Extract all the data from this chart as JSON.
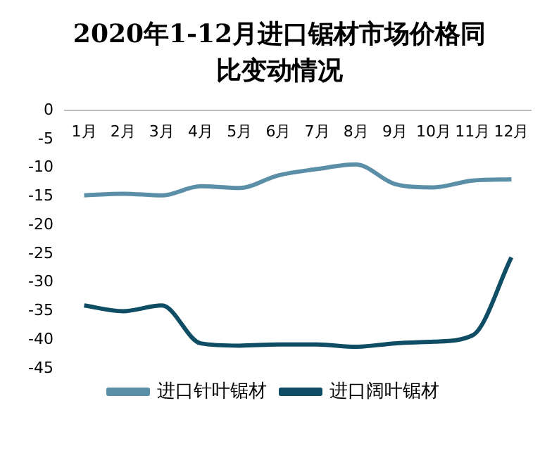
{
  "chart_data": {
    "type": "line",
    "title": "2020年1-12月进口锯材市场价格同比变动情况",
    "categories": [
      "1月",
      "2月",
      "3月",
      "4月",
      "5月",
      "6月",
      "7月",
      "8月",
      "9月",
      "10月",
      "11月",
      "12月"
    ],
    "series": [
      {
        "name": "进口针叶锯材",
        "color": "#5b8fa8",
        "values": [
          -14.8,
          -14.5,
          -14.8,
          -13.2,
          -13.5,
          -11.3,
          -10.2,
          -9.4,
          -12.8,
          -13.4,
          -12.2,
          -12.0
        ]
      },
      {
        "name": "进口阔叶锯材",
        "color": "#0e4d64",
        "values": [
          -34,
          -35,
          -34,
          -40.6,
          -41,
          -40.8,
          -40.8,
          -41.2,
          -40.6,
          -40.3,
          -39.2,
          -25.6
        ]
      }
    ],
    "ylim": [
      -45,
      0
    ],
    "yticks": [
      -45,
      -40,
      -35,
      -30,
      -25,
      -20,
      -15,
      -10,
      -5,
      0
    ],
    "grid": false,
    "legend": "bottom",
    "marker": "none",
    "line_style": "solid"
  }
}
